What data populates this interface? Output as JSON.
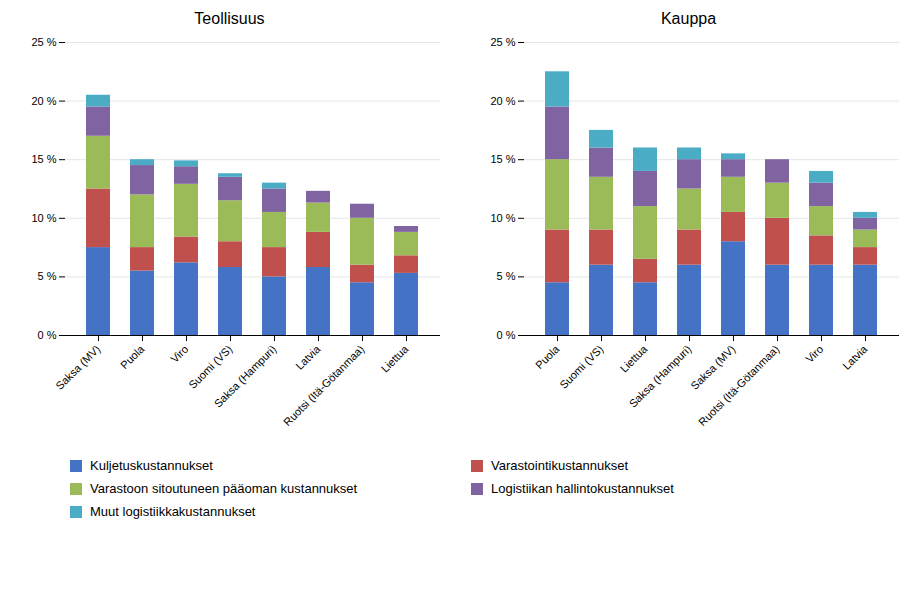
{
  "chart_data": [
    {
      "type": "bar",
      "stacked": true,
      "title": "Teollisuus",
      "categories": [
        "Saksa (MV)",
        "Puola",
        "Viro",
        "Suomi (VS)",
        "Saksa (Hampuri)",
        "Latvia",
        "Ruotsi (Itä-Götanmaa)",
        "Liettua"
      ],
      "series": [
        {
          "name": "Kuljetuskustannukset",
          "color": "#4472C4",
          "values": [
            7.5,
            5.5,
            6.2,
            5.8,
            5.0,
            5.8,
            4.5,
            5.3
          ]
        },
        {
          "name": "Varastointikustannukset",
          "color": "#C0504D",
          "values": [
            5.0,
            2.0,
            2.2,
            2.2,
            2.5,
            3.0,
            1.5,
            1.5
          ]
        },
        {
          "name": "Varastoon sitoutuneen pääoman kustannukset",
          "color": "#9BBB59",
          "values": [
            4.5,
            4.5,
            4.5,
            3.5,
            3.0,
            2.5,
            4.0,
            2.0
          ]
        },
        {
          "name": "Logistiikan hallintokustannukset",
          "color": "#8064A2",
          "values": [
            2.5,
            2.5,
            1.5,
            2.0,
            2.0,
            1.0,
            1.2,
            0.5
          ]
        },
        {
          "name": "Muut logistiikkakustannukset",
          "color": "#4BACC6",
          "values": [
            1.0,
            0.5,
            0.5,
            0.3,
            0.5,
            0.0,
            0.0,
            0.0
          ]
        }
      ],
      "ylim": [
        0,
        25
      ],
      "yticks": [
        {
          "value": 0,
          "label": "0 %"
        },
        {
          "value": 5,
          "label": "5 %"
        },
        {
          "value": 10,
          "label": "10 %"
        },
        {
          "value": 15,
          "label": "15 %"
        },
        {
          "value": 20,
          "label": "20 %"
        },
        {
          "value": 25,
          "label": "25 %"
        }
      ],
      "grid": true
    },
    {
      "type": "bar",
      "stacked": true,
      "title": "Kauppa",
      "categories": [
        "Puola",
        "Suomi (VS)",
        "Liettua",
        "Saksa (Hampuri)",
        "Saksa (MV)",
        "Ruotsi (Itä-Götanmaa)",
        "Viro",
        "Latvia"
      ],
      "series": [
        {
          "name": "Kuljetuskustannukset",
          "color": "#4472C4",
          "values": [
            4.5,
            6.0,
            4.5,
            6.0,
            8.0,
            6.0,
            6.0,
            6.0
          ]
        },
        {
          "name": "Varastointikustannukset",
          "color": "#C0504D",
          "values": [
            4.5,
            3.0,
            2.0,
            3.0,
            2.5,
            4.0,
            2.5,
            1.5
          ]
        },
        {
          "name": "Varastoon sitoutuneen pääoman kustannukset",
          "color": "#9BBB59",
          "values": [
            6.0,
            4.5,
            4.5,
            3.5,
            3.0,
            3.0,
            2.5,
            1.5
          ]
        },
        {
          "name": "Logistiikan hallintokustannukset",
          "color": "#8064A2",
          "values": [
            4.5,
            2.5,
            3.0,
            2.5,
            1.5,
            2.0,
            2.0,
            1.0
          ]
        },
        {
          "name": "Muut logistiikkakustannukset",
          "color": "#4BACC6",
          "values": [
            3.0,
            1.5,
            2.0,
            1.0,
            0.5,
            0.0,
            1.0,
            0.5
          ]
        }
      ],
      "ylim": [
        0,
        25
      ],
      "yticks": [
        {
          "value": 0,
          "label": "0 %"
        },
        {
          "value": 5,
          "label": "5 %"
        },
        {
          "value": 10,
          "label": "10 %"
        },
        {
          "value": 15,
          "label": "15 %"
        },
        {
          "value": 20,
          "label": "20 %"
        },
        {
          "value": 25,
          "label": "25 %"
        }
      ],
      "grid": true
    }
  ]
}
